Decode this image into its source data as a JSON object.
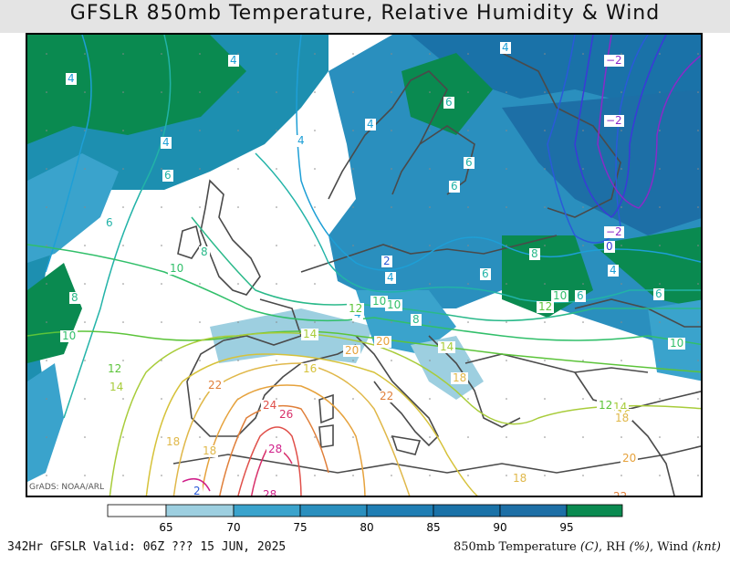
{
  "title": "GFSLR 850mb Temperature, Relative Humidity & Wind",
  "credit": "GrADS: NOAA/ARL",
  "footer": {
    "left": "342Hr GFSLR Valid: 06Z ??? 15 JUN, 2025",
    "right_parts": [
      "850mb Temperature ",
      "(C)",
      ", RH ",
      "(%)",
      ", Wind ",
      "(knt)"
    ]
  },
  "colorbar": {
    "ticks": [
      "65",
      "70",
      "75",
      "80",
      "85",
      "90",
      "95"
    ],
    "colors": [
      "#ffffff",
      "#9dcfe0",
      "#3aa3cc",
      "#2a8fbe",
      "#1f7eb4",
      "#1a72a8",
      "#1d6fa6",
      "#0a8a50"
    ]
  },
  "contour_labels": [
    {
      "text": "4",
      "color": "#1e9fd6"
    },
    {
      "text": "4",
      "color": "#1e9fd6"
    },
    {
      "text": "4",
      "color": "#1e9fd6"
    },
    {
      "text": "4",
      "color": "#1e9fd6"
    },
    {
      "text": "4",
      "color": "#1e9fd6"
    },
    {
      "text": "4",
      "color": "#1e9fd6"
    },
    {
      "text": "4",
      "color": "#1e9fd6"
    },
    {
      "text": "4",
      "color": "#1e9fd6"
    },
    {
      "text": "4",
      "color": "#1e9fd6"
    },
    {
      "text": "6",
      "color": "#22b3a8"
    },
    {
      "text": "6",
      "color": "#22b3a8"
    },
    {
      "text": "6",
      "color": "#22b3a8"
    },
    {
      "text": "6",
      "color": "#22b3a8"
    },
    {
      "text": "6",
      "color": "#22b3a8"
    },
    {
      "text": "6",
      "color": "#22b3a8"
    },
    {
      "text": "6",
      "color": "#22b3a8"
    },
    {
      "text": "6",
      "color": "#22b3a8"
    },
    {
      "text": "8",
      "color": "#2ab98a"
    },
    {
      "text": "8",
      "color": "#2ab98a"
    },
    {
      "text": "8",
      "color": "#2ab98a"
    },
    {
      "text": "8",
      "color": "#2ab98a"
    },
    {
      "text": "10",
      "color": "#31bf6a"
    },
    {
      "text": "10",
      "color": "#31bf6a"
    },
    {
      "text": "10",
      "color": "#31bf6a"
    },
    {
      "text": "10",
      "color": "#31bf6a"
    },
    {
      "text": "10",
      "color": "#31bf6a"
    },
    {
      "text": "10",
      "color": "#31bf6a"
    },
    {
      "text": "12",
      "color": "#5cc43a"
    },
    {
      "text": "12",
      "color": "#5cc43a"
    },
    {
      "text": "12",
      "color": "#5cc43a"
    },
    {
      "text": "12",
      "color": "#5cc43a"
    },
    {
      "text": "14",
      "color": "#a8cc3a"
    },
    {
      "text": "14",
      "color": "#a8cc3a"
    },
    {
      "text": "14",
      "color": "#a8cc3a"
    },
    {
      "text": "14",
      "color": "#a8cc3a"
    },
    {
      "text": "16",
      "color": "#d6c23a"
    },
    {
      "text": "16",
      "color": "#d6c23a"
    },
    {
      "text": "18",
      "color": "#e0b84a"
    },
    {
      "text": "18",
      "color": "#e0b84a"
    },
    {
      "text": "18",
      "color": "#e0b84a"
    },
    {
      "text": "18",
      "color": "#e0b84a"
    },
    {
      "text": "18",
      "color": "#e0b84a"
    },
    {
      "text": "20",
      "color": "#e6a23c"
    },
    {
      "text": "20",
      "color": "#e6a23c"
    },
    {
      "text": "20",
      "color": "#e6a23c"
    },
    {
      "text": "22",
      "color": "#e07f3a"
    },
    {
      "text": "22",
      "color": "#e07f3a"
    },
    {
      "text": "22",
      "color": "#e07f3a"
    },
    {
      "text": "24",
      "color": "#e0504a"
    },
    {
      "text": "26",
      "color": "#d8306a"
    },
    {
      "text": "28",
      "color": "#d0208a"
    },
    {
      "text": "28",
      "color": "#d0208a"
    },
    {
      "text": "2",
      "color": "#2a5ad8"
    },
    {
      "text": "2",
      "color": "#2a5ad8"
    },
    {
      "text": "0",
      "color": "#3a3ad8"
    },
    {
      "text": "−2",
      "color": "#8a2ac8"
    },
    {
      "text": "−2",
      "color": "#8a2ac8"
    },
    {
      "text": "−2",
      "color": "#8a2ac8"
    }
  ]
}
